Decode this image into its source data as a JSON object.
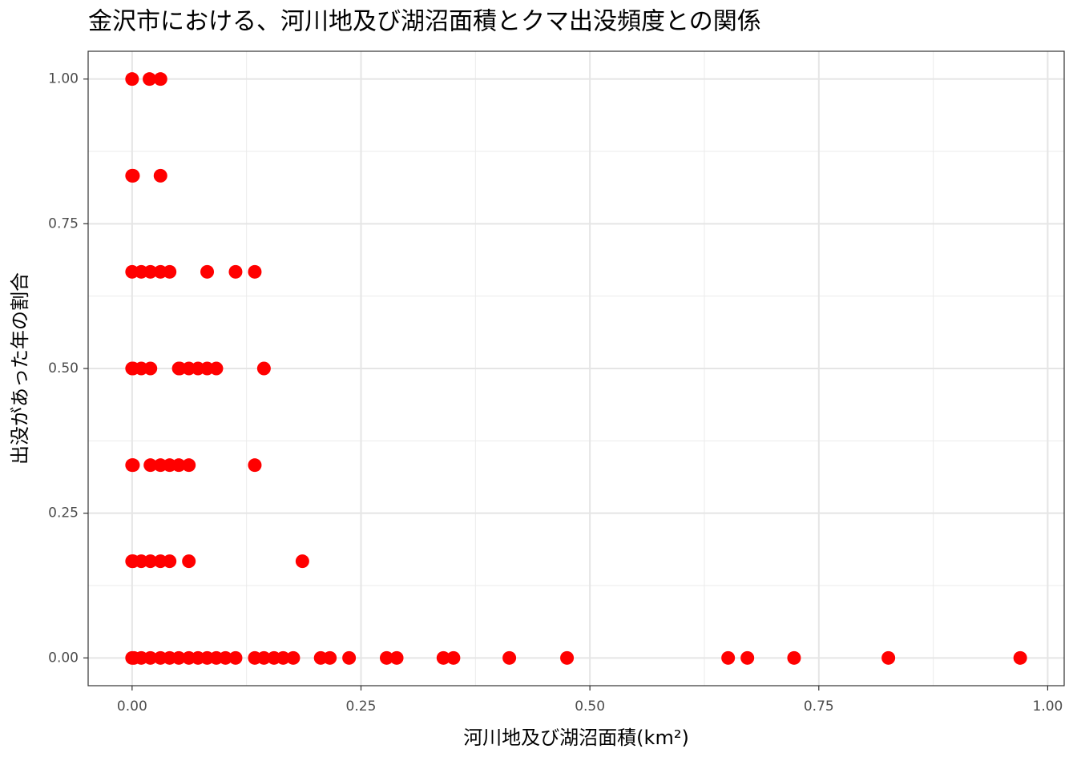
{
  "chart_data": {
    "type": "scatter",
    "title": "金沢市における、河川地及び湖沼面積とクマ出没頻度との関係",
    "x_label": "河川地及び湖沼面積(km²)",
    "y_label": "出没があった年の割合",
    "color": "#ff0000",
    "grid": true,
    "xlim": [
      -0.048,
      1.018
    ],
    "ylim": [
      -0.048,
      1.048
    ],
    "xticks": [
      {
        "value": 0,
        "label": "0.00"
      },
      {
        "value": 0.25,
        "label": "0.25"
      },
      {
        "value": 0.5,
        "label": "0.50"
      },
      {
        "value": 0.75,
        "label": "0.75"
      },
      {
        "value": 1,
        "label": "1.00"
      }
    ],
    "yticks": [
      {
        "value": 0,
        "label": "0.00"
      },
      {
        "value": 0.25,
        "label": "0.25"
      },
      {
        "value": 0.5,
        "label": "0.50"
      },
      {
        "value": 0.75,
        "label": "0.75"
      },
      {
        "value": 1,
        "label": "1.00"
      }
    ],
    "x": [
      0,
      0.019,
      0.031,
      0,
      0.001,
      0.031,
      0,
      0.01,
      0.02,
      0.031,
      0.041,
      0.082,
      0.113,
      0.134,
      0,
      0.001,
      0.01,
      0.02,
      0.051,
      0.052,
      0.062,
      0.072,
      0.082,
      0.092,
      0.144,
      0,
      0.001,
      0.02,
      0.031,
      0.041,
      0.051,
      0.062,
      0.134,
      0,
      0.001,
      0.01,
      0.02,
      0.031,
      0.041,
      0.062,
      0.186,
      0,
      0.002,
      0.01,
      0.02,
      0.031,
      0.041,
      0.051,
      0.062,
      0.072,
      0.082,
      0.092,
      0.102,
      0.113,
      0.134,
      0.144,
      0.155,
      0.165,
      0.176,
      0.206,
      0.216,
      0.237,
      0.278,
      0.289,
      0.34,
      0.351,
      0.412,
      0.475,
      0.651,
      0.672,
      0.723,
      0.826,
      0.97
    ],
    "values": [
      1,
      1,
      1,
      0.833,
      0.833,
      0.833,
      0.667,
      0.667,
      0.667,
      0.667,
      0.667,
      0.667,
      0.667,
      0.667,
      0.5,
      0.5,
      0.5,
      0.5,
      0.5,
      0.5,
      0.5,
      0.5,
      0.5,
      0.5,
      0.5,
      0.333,
      0.333,
      0.333,
      0.333,
      0.333,
      0.333,
      0.333,
      0.333,
      0.167,
      0.167,
      0.167,
      0.167,
      0.167,
      0.167,
      0.167,
      0.167,
      0,
      0,
      0,
      0,
      0,
      0,
      0,
      0,
      0,
      0,
      0,
      0,
      0,
      0,
      0,
      0,
      0,
      0,
      0,
      0,
      0,
      0,
      0,
      0,
      0,
      0,
      0,
      0,
      0,
      0,
      0,
      0
    ]
  }
}
